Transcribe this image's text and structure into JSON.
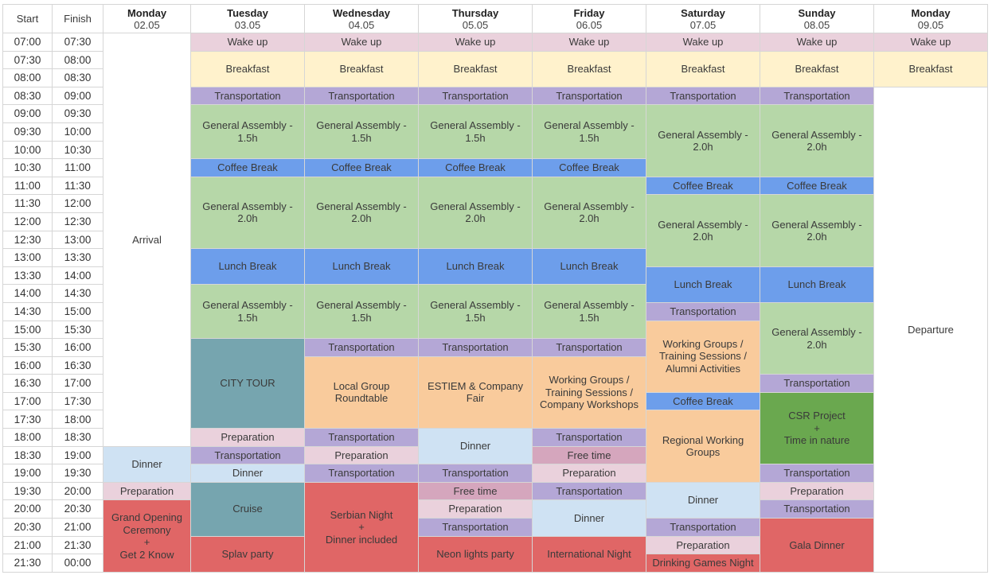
{
  "header": {
    "start": "Start",
    "finish": "Finish",
    "days": [
      {
        "day": "Monday",
        "date": "02.05"
      },
      {
        "day": "Tuesday",
        "date": "03.05"
      },
      {
        "day": "Wednesday",
        "date": "04.05"
      },
      {
        "day": "Thursday",
        "date": "05.05"
      },
      {
        "day": "Friday",
        "date": "06.05"
      },
      {
        "day": "Saturday",
        "date": "07.05"
      },
      {
        "day": "Sunday",
        "date": "08.05"
      },
      {
        "day": "Monday",
        "date": "09.05"
      }
    ]
  },
  "slots": [
    {
      "start": "07:00",
      "finish": "07:30"
    },
    {
      "start": "07:30",
      "finish": "08:00"
    },
    {
      "start": "08:00",
      "finish": "08:30"
    },
    {
      "start": "08:30",
      "finish": "09:00"
    },
    {
      "start": "09:00",
      "finish": "09:30"
    },
    {
      "start": "09:30",
      "finish": "10:00"
    },
    {
      "start": "10:00",
      "finish": "10:30"
    },
    {
      "start": "10:30",
      "finish": "11:00"
    },
    {
      "start": "11:00",
      "finish": "11:30"
    },
    {
      "start": "11:30",
      "finish": "12:00"
    },
    {
      "start": "12:00",
      "finish": "12:30"
    },
    {
      "start": "12:30",
      "finish": "13:00"
    },
    {
      "start": "13:00",
      "finish": "13:30"
    },
    {
      "start": "13:30",
      "finish": "14:00"
    },
    {
      "start": "14:00",
      "finish": "14:30"
    },
    {
      "start": "14:30",
      "finish": "15:00"
    },
    {
      "start": "15:00",
      "finish": "15:30"
    },
    {
      "start": "15:30",
      "finish": "16:00"
    },
    {
      "start": "16:00",
      "finish": "16:30"
    },
    {
      "start": "16:30",
      "finish": "17:00"
    },
    {
      "start": "17:00",
      "finish": "17:30"
    },
    {
      "start": "17:30",
      "finish": "18:00"
    },
    {
      "start": "18:00",
      "finish": "18:30"
    },
    {
      "start": "18:30",
      "finish": "19:00"
    },
    {
      "start": "19:00",
      "finish": "19:30"
    },
    {
      "start": "19:30",
      "finish": "20:00"
    },
    {
      "start": "20:00",
      "finish": "20:30"
    },
    {
      "start": "20:30",
      "finish": "21:00"
    },
    {
      "start": "21:00",
      "finish": "21:30"
    },
    {
      "start": "21:30",
      "finish": "00:00"
    }
  ],
  "colors": {
    "wake": "#ead1dc",
    "breakfast": "#fff2cc",
    "transport": "#b4a7d6",
    "assembly": "#b6d7a8",
    "coffee": "#6d9eeb",
    "lunch": "#6d9eeb",
    "city_tour": "#76a5af",
    "workshop": "#f9cb9c",
    "dinner": "#cfe2f3",
    "evening": "#e06666",
    "free_time": "#d5a6bd",
    "csr": "#6aa84f",
    "white": "#ffffff"
  },
  "days": [
    [
      {
        "slots": 23,
        "label": "Arrival",
        "color": "white"
      },
      {
        "slots": 2,
        "label": "Dinner",
        "color": "dinner"
      },
      {
        "slots": 1,
        "label": "Preparation",
        "color": "wake"
      },
      {
        "slots": 4,
        "label": "Grand Opening\nCeremony\n+\nGet 2 Know",
        "color": "evening"
      }
    ],
    [
      {
        "slots": 1,
        "label": "Wake up",
        "color": "wake"
      },
      {
        "slots": 2,
        "label": "Breakfast",
        "color": "breakfast"
      },
      {
        "slots": 1,
        "label": "Transportation",
        "color": "transport"
      },
      {
        "slots": 3,
        "label": "General Assembly -\n1.5h",
        "color": "assembly"
      },
      {
        "slots": 1,
        "label": "Coffee Break",
        "color": "coffee"
      },
      {
        "slots": 4,
        "label": "General Assembly -\n2.0h",
        "color": "assembly"
      },
      {
        "slots": 2,
        "label": "Lunch Break",
        "color": "lunch"
      },
      {
        "slots": 3,
        "label": "General Assembly -\n1.5h",
        "color": "assembly"
      },
      {
        "slots": 5,
        "label": "CITY TOUR",
        "color": "city_tour"
      },
      {
        "slots": 1,
        "label": "Preparation",
        "color": "wake"
      },
      {
        "slots": 1,
        "label": "Transportation",
        "color": "transport"
      },
      {
        "slots": 1,
        "label": "Dinner",
        "color": "dinner"
      },
      {
        "slots": 3,
        "label": "Cruise",
        "color": "city_tour"
      },
      {
        "slots": 2,
        "label": "Splav party",
        "color": "evening"
      }
    ],
    [
      {
        "slots": 1,
        "label": "Wake up",
        "color": "wake"
      },
      {
        "slots": 2,
        "label": "Breakfast",
        "color": "breakfast"
      },
      {
        "slots": 1,
        "label": "Transportation",
        "color": "transport"
      },
      {
        "slots": 3,
        "label": "General Assembly -\n1.5h",
        "color": "assembly"
      },
      {
        "slots": 1,
        "label": "Coffee Break",
        "color": "coffee"
      },
      {
        "slots": 4,
        "label": "General Assembly -\n2.0h",
        "color": "assembly"
      },
      {
        "slots": 2,
        "label": "Lunch Break",
        "color": "lunch"
      },
      {
        "slots": 3,
        "label": "General Assembly -\n1.5h",
        "color": "assembly"
      },
      {
        "slots": 1,
        "label": "Transportation",
        "color": "transport"
      },
      {
        "slots": 4,
        "label": "Local Group\nRoundtable",
        "color": "workshop"
      },
      {
        "slots": 1,
        "label": "Transportation",
        "color": "transport"
      },
      {
        "slots": 1,
        "label": "Preparation",
        "color": "wake"
      },
      {
        "slots": 1,
        "label": "Transportation",
        "color": "transport"
      },
      {
        "slots": 5,
        "label": "Serbian Night\n+\nDinner included",
        "color": "evening"
      }
    ],
    [
      {
        "slots": 1,
        "label": "Wake up",
        "color": "wake"
      },
      {
        "slots": 2,
        "label": "Breakfast",
        "color": "breakfast"
      },
      {
        "slots": 1,
        "label": "Transportation",
        "color": "transport"
      },
      {
        "slots": 3,
        "label": "General Assembly -\n1.5h",
        "color": "assembly"
      },
      {
        "slots": 1,
        "label": "Coffee Break",
        "color": "coffee"
      },
      {
        "slots": 4,
        "label": "General Assembly -\n2.0h",
        "color": "assembly"
      },
      {
        "slots": 2,
        "label": "Lunch Break",
        "color": "lunch"
      },
      {
        "slots": 3,
        "label": "General Assembly -\n1.5h",
        "color": "assembly"
      },
      {
        "slots": 1,
        "label": "Transportation",
        "color": "transport"
      },
      {
        "slots": 4,
        "label": "ESTIEM & Company\nFair",
        "color": "workshop"
      },
      {
        "slots": 2,
        "label": "Dinner",
        "color": "dinner"
      },
      {
        "slots": 1,
        "label": "Transportation",
        "color": "transport"
      },
      {
        "slots": 1,
        "label": "Free time",
        "color": "free_time"
      },
      {
        "slots": 1,
        "label": "Preparation",
        "color": "wake"
      },
      {
        "slots": 1,
        "label": "Transportation",
        "color": "transport"
      },
      {
        "slots": 2,
        "label": "Neon lights party",
        "color": "evening"
      }
    ],
    [
      {
        "slots": 1,
        "label": "Wake up",
        "color": "wake"
      },
      {
        "slots": 2,
        "label": "Breakfast",
        "color": "breakfast"
      },
      {
        "slots": 1,
        "label": "Transportation",
        "color": "transport"
      },
      {
        "slots": 3,
        "label": "General Assembly -\n1.5h",
        "color": "assembly"
      },
      {
        "slots": 1,
        "label": "Coffee Break",
        "color": "coffee"
      },
      {
        "slots": 4,
        "label": "General Assembly -\n2.0h",
        "color": "assembly"
      },
      {
        "slots": 2,
        "label": "Lunch Break",
        "color": "lunch"
      },
      {
        "slots": 3,
        "label": "General Assembly -\n1.5h",
        "color": "assembly"
      },
      {
        "slots": 1,
        "label": "Transportation",
        "color": "transport"
      },
      {
        "slots": 4,
        "label": "Working Groups /\nTraining Sessions /\nCompany Workshops",
        "color": "workshop"
      },
      {
        "slots": 1,
        "label": "Transportation",
        "color": "transport"
      },
      {
        "slots": 1,
        "label": "Free time",
        "color": "free_time"
      },
      {
        "slots": 1,
        "label": "Preparation",
        "color": "wake"
      },
      {
        "slots": 1,
        "label": "Transportation",
        "color": "transport"
      },
      {
        "slots": 2,
        "label": "Dinner",
        "color": "dinner"
      },
      {
        "slots": 2,
        "label": "International Night",
        "color": "evening"
      }
    ],
    [
      {
        "slots": 1,
        "label": "Wake up",
        "color": "wake"
      },
      {
        "slots": 2,
        "label": "Breakfast",
        "color": "breakfast"
      },
      {
        "slots": 1,
        "label": "Transportation",
        "color": "transport"
      },
      {
        "slots": 4,
        "label": "General Assembly -\n2.0h",
        "color": "assembly"
      },
      {
        "slots": 1,
        "label": "Coffee Break",
        "color": "coffee"
      },
      {
        "slots": 4,
        "label": "General Assembly -\n2.0h",
        "color": "assembly"
      },
      {
        "slots": 2,
        "label": "Lunch Break",
        "color": "lunch"
      },
      {
        "slots": 1,
        "label": "Transportation",
        "color": "transport"
      },
      {
        "slots": 4,
        "label": "Working Groups /\nTraining Sessions /\nAlumni Activities",
        "color": "workshop"
      },
      {
        "slots": 1,
        "label": "Coffee Break",
        "color": "coffee"
      },
      {
        "slots": 4,
        "label": "Regional Working\nGroups",
        "color": "workshop"
      },
      {
        "slots": 2,
        "label": "Dinner",
        "color": "dinner"
      },
      {
        "slots": 1,
        "label": "Transportation",
        "color": "transport"
      },
      {
        "slots": 1,
        "label": "Preparation",
        "color": "wake"
      },
      {
        "slots": 1,
        "label": "Drinking Games Night",
        "color": "evening"
      }
    ],
    [
      {
        "slots": 1,
        "label": "Wake up",
        "color": "wake"
      },
      {
        "slots": 2,
        "label": "Breakfast",
        "color": "breakfast"
      },
      {
        "slots": 1,
        "label": "Transportation",
        "color": "transport"
      },
      {
        "slots": 4,
        "label": "General Assembly -\n2.0h",
        "color": "assembly"
      },
      {
        "slots": 1,
        "label": "Coffee Break",
        "color": "coffee"
      },
      {
        "slots": 4,
        "label": "General Assembly -\n2.0h",
        "color": "assembly"
      },
      {
        "slots": 2,
        "label": "Lunch Break",
        "color": "lunch"
      },
      {
        "slots": 4,
        "label": "General Assembly -\n2.0h",
        "color": "assembly"
      },
      {
        "slots": 1,
        "label": "Transportation",
        "color": "transport"
      },
      {
        "slots": 4,
        "label": "CSR Project\n+\nTime in nature",
        "color": "csr"
      },
      {
        "slots": 1,
        "label": "Transportation",
        "color": "transport"
      },
      {
        "slots": 1,
        "label": "Preparation",
        "color": "wake"
      },
      {
        "slots": 1,
        "label": "Transportation",
        "color": "transport"
      },
      {
        "slots": 3,
        "label": "Gala Dinner",
        "color": "evening"
      }
    ],
    [
      {
        "slots": 1,
        "label": "Wake up",
        "color": "wake"
      },
      {
        "slots": 2,
        "label": "Breakfast",
        "color": "breakfast"
      },
      {
        "slots": 27,
        "label": "Departure",
        "color": "white"
      }
    ]
  ]
}
